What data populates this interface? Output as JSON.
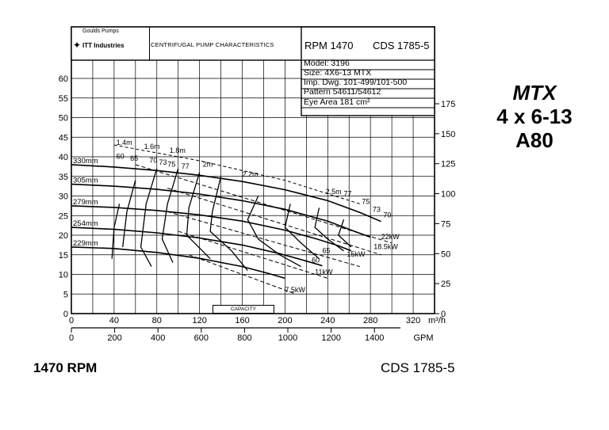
{
  "header": {
    "logo_top": "Goulds Pumps",
    "logo_bottom": "ITT Industries",
    "title": "CENTRIFUGAL PUMP CHARACTERISTICS",
    "rpm": "RPM  1470",
    "cds": "CDS 1785-5"
  },
  "specs": {
    "model": "Model: 3196",
    "size": "Size: 4X6-13 MTX",
    "imp_dwg": "Imp. Dwg. 101-499/101-500",
    "pattern": "Pattern 54611/54612",
    "eye_area": "Eye Area   181  cm²"
  },
  "side_label": {
    "line1": "MTX",
    "line2": "4 x 6-13",
    "line3": "A80"
  },
  "footer": {
    "left": "1470 RPM",
    "right": "CDS 1785-5"
  },
  "capacity_label": "CAPACITY",
  "chart_data": {
    "type": "line",
    "title": "CENTRIFUGAL PUMP CHARACTERISTICS",
    "xlabel": "m³/h",
    "xlabel_secondary": "GPM",
    "ylabel": "",
    "ylim": [
      0,
      62
    ],
    "xlim": [
      0,
      340
    ],
    "grid": true,
    "left_axis_ticks": [
      "0",
      "5",
      "10",
      "15",
      "20",
      "25",
      "30",
      "35",
      "40",
      "45",
      "50",
      "55",
      "60"
    ],
    "right_axis_ticks": [
      "0",
      "25",
      "50",
      "75",
      "100",
      "125",
      "150",
      "175"
    ],
    "x_ticks": [
      "0",
      "40",
      "80",
      "120",
      "160",
      "200",
      "240",
      "280",
      "320"
    ],
    "gpm_ticks": [
      "0",
      "200",
      "400",
      "600",
      "800",
      "1000",
      "1200",
      "1400"
    ],
    "series": [
      {
        "name": "330mm",
        "points": [
          [
            0,
            38
          ],
          [
            40,
            37.4
          ],
          [
            80,
            36.5
          ],
          [
            120,
            35.3
          ],
          [
            160,
            33.7
          ],
          [
            200,
            31.6
          ],
          [
            240,
            28.8
          ],
          [
            270,
            25.8
          ],
          [
            290,
            23.5
          ]
        ]
      },
      {
        "name": "305mm",
        "points": [
          [
            0,
            33
          ],
          [
            40,
            32.5
          ],
          [
            80,
            31.7
          ],
          [
            120,
            30.5
          ],
          [
            160,
            28.8
          ],
          [
            200,
            26.6
          ],
          [
            240,
            23.6
          ],
          [
            265,
            21.0
          ],
          [
            280,
            19.5
          ]
        ]
      },
      {
        "name": "279mm",
        "points": [
          [
            0,
            27.5
          ],
          [
            40,
            27.1
          ],
          [
            80,
            26.3
          ],
          [
            120,
            25.2
          ],
          [
            160,
            23.6
          ],
          [
            200,
            21.3
          ],
          [
            230,
            19.0
          ],
          [
            250,
            17.3
          ],
          [
            262,
            16.0
          ]
        ]
      },
      {
        "name": "254mm",
        "points": [
          [
            0,
            22
          ],
          [
            40,
            21.5
          ],
          [
            80,
            20.6
          ],
          [
            120,
            19.3
          ],
          [
            160,
            17.5
          ],
          [
            195,
            15.3
          ],
          [
            220,
            13.4
          ],
          [
            235,
            12.2
          ]
        ]
      },
      {
        "name": "229mm",
        "points": [
          [
            0,
            17
          ],
          [
            40,
            16.6
          ],
          [
            80,
            15.6
          ],
          [
            120,
            14.1
          ],
          [
            160,
            12.0
          ],
          [
            185,
            10.2
          ],
          [
            200,
            9.0
          ]
        ]
      }
    ],
    "efficiency_labels": [
      "60",
      "65",
      "70",
      "73",
      "75",
      "77",
      "77",
      "75",
      "73",
      "70",
      "65",
      "60"
    ],
    "npshr_labels": [
      "1.4m",
      "1.6m",
      "1.8m",
      "2m",
      "2.2m",
      "2.5m"
    ],
    "power_labels": [
      "22kW",
      "18.5kW",
      "15kW",
      "11kW",
      "7.5kW"
    ]
  }
}
